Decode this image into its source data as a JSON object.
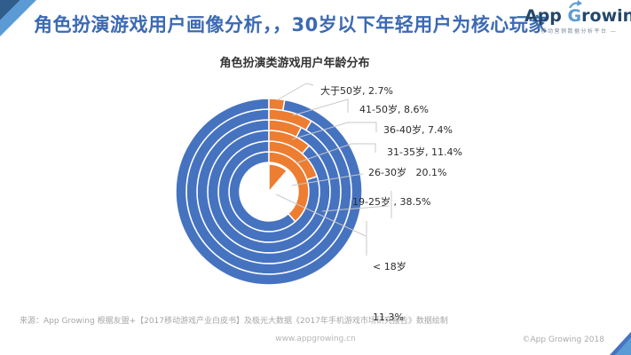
{
  "header": {
    "title": "角色扮演游戏用户画像分析，，30岁以下年轻用户为核心玩家",
    "logo": {
      "app": "App ",
      "g": "G",
      "rest": "rowing",
      "arrow_icon": "curved-up-arrow",
      "tagline": "—  移动营销数据分析平台  —"
    }
  },
  "chart_data": {
    "type": "pie",
    "variant": "concentric-donut",
    "title": "角色扮演类游戏用户年龄分布",
    "categories": [
      "<18岁",
      "19-25岁",
      "26-30岁",
      "31-35岁",
      "36-40岁",
      "41-50岁",
      "大于50岁"
    ],
    "values": [
      11.3,
      38.5,
      20.1,
      11.4,
      7.4,
      8.6,
      2.7
    ],
    "unit": "%",
    "layout_hint": "concentric rings; innermost wedge = <18岁, rings inner to outer = 19-25岁 … 大于50岁 (outermost); each segment starts at 12 o'clock and sweeps clockwise by its percentage; remainder of each ring is blue; white separators; callout labels on the right",
    "colors": {
      "segment": "#ED7D31",
      "remainder": "#4673C0",
      "leader_line": "#C9C9C9",
      "background": "#FFFFFF"
    },
    "labels": [
      {
        "text": "大于50岁, 2.7%"
      },
      {
        "text": "41-50岁, 8.6%"
      },
      {
        "text": "36-40岁, 7.4%"
      },
      {
        "text": "31-35岁, 11.4%"
      },
      {
        "text": "26-30岁   20.1%"
      },
      {
        "text": "19-25岁 , 38.5%"
      },
      {
        "text": "< 18岁",
        "text2": "11.3%"
      }
    ]
  },
  "footer": {
    "source": "来源：App Growing 根据友盟+【2017移动游戏产业白皮书】及极光大数据《2017年手机游戏市场研究报告》数据绘制",
    "website": "www.appgrowing.cn",
    "copyright": "©App Growing 2018"
  },
  "theme": {
    "title_blue": "#3C6AB3",
    "ornament_dark": "#2F5D8C",
    "ornament_light": "#5B9BD5",
    "logo_navy": "#24476B"
  }
}
